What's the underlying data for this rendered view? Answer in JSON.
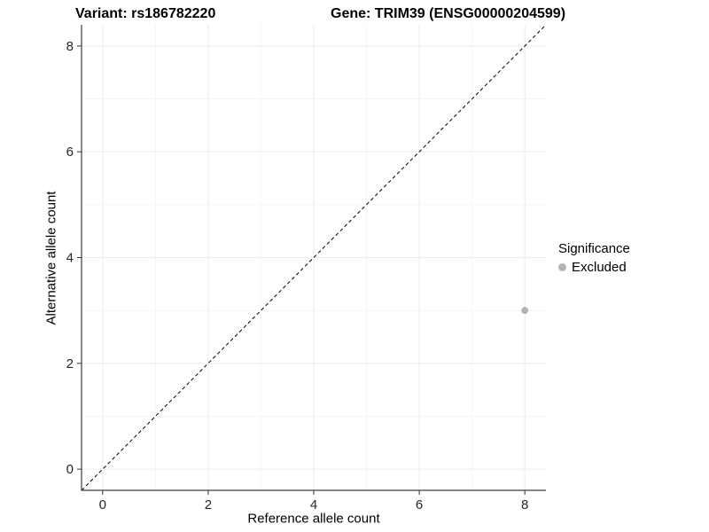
{
  "titles": {
    "variant": "Variant: rs186782220",
    "gene": "Gene: TRIM39 (ENSG00000204599)"
  },
  "axes": {
    "x": {
      "label": "Reference allele count"
    },
    "y": {
      "label": "Alternative allele count"
    }
  },
  "legend": {
    "title": "Significance",
    "items": [
      {
        "label": "Excluded",
        "color": "#b4b4b4"
      }
    ]
  },
  "colors": {
    "point": "#b4b4b4",
    "major_grid": "#ebebeb",
    "minor_grid": "#f5f5f5",
    "axis_line": "#3c3c3c",
    "tick_mark": "#333333",
    "tick_label": "#262626",
    "reference_line": "#000000",
    "background": "#ffffff"
  },
  "chart_data": {
    "type": "scatter",
    "title": "Variant: rs186782220   Gene: TRIM39 (ENSG00000204599)",
    "xlabel": "Reference allele count",
    "ylabel": "Alternative allele count",
    "xlim": [
      -0.4,
      8.4
    ],
    "ylim": [
      -0.4,
      8.4
    ],
    "x_ticks": [
      0,
      2,
      4,
      6,
      8
    ],
    "y_ticks": [
      0,
      2,
      4,
      6,
      8
    ],
    "x_minor": [
      1,
      3,
      5,
      7
    ],
    "y_minor": [
      1,
      3,
      5,
      7
    ],
    "grid": true,
    "legend_position": "right",
    "series": [
      {
        "name": "Excluded",
        "color": "#b4b4b4",
        "points": [
          {
            "x": 8,
            "y": 3
          }
        ]
      }
    ],
    "reference_line": {
      "slope": 1,
      "intercept": 0,
      "style": "dashed",
      "color": "#000000"
    }
  }
}
